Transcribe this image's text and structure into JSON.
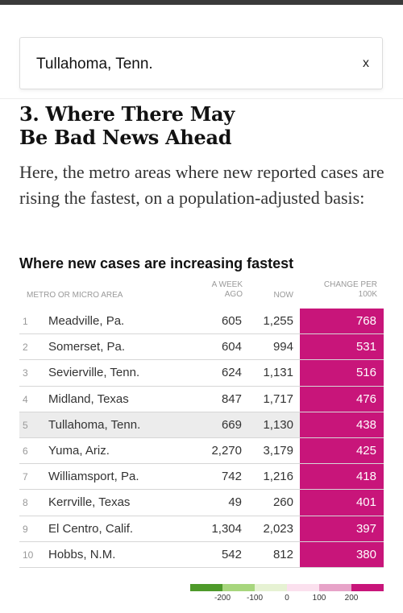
{
  "search": {
    "value": "Tullahoma, Tenn.",
    "clear_label": "x"
  },
  "section": {
    "headline_line1": "3. Where There May",
    "headline_line2": "Be Bad News Ahead",
    "intro": "Here, the metro areas where new reported cases are rising the fastest, on a population-adjusted basis:"
  },
  "table": {
    "title": "Where new cases are increasing fastest",
    "headers": {
      "metro": "METRO OR MICRO AREA",
      "ago_line1": "A WEEK",
      "ago_line2": "AGO",
      "now": "NOW",
      "change_line1": "CHANGE PER",
      "change_line2": "100K"
    },
    "rows": [
      {
        "rank": "1",
        "name": "Meadville, Pa.",
        "ago": "605",
        "now": "1,255",
        "change": "768"
      },
      {
        "rank": "2",
        "name": "Somerset, Pa.",
        "ago": "604",
        "now": "994",
        "change": "531"
      },
      {
        "rank": "3",
        "name": "Sevierville, Tenn.",
        "ago": "624",
        "now": "1,131",
        "change": "516"
      },
      {
        "rank": "4",
        "name": "Midland, Texas",
        "ago": "847",
        "now": "1,717",
        "change": "476"
      },
      {
        "rank": "5",
        "name": "Tullahoma, Tenn.",
        "ago": "669",
        "now": "1,130",
        "change": "438"
      },
      {
        "rank": "6",
        "name": "Yuma, Ariz.",
        "ago": "2,270",
        "now": "3,179",
        "change": "425"
      },
      {
        "rank": "7",
        "name": "Williamsport, Pa.",
        "ago": "742",
        "now": "1,216",
        "change": "418"
      },
      {
        "rank": "8",
        "name": "Kerrville, Texas",
        "ago": "49",
        "now": "260",
        "change": "401"
      },
      {
        "rank": "9",
        "name": "El Centro, Calif.",
        "ago": "1,304",
        "now": "2,023",
        "change": "397"
      },
      {
        "rank": "10",
        "name": "Hobbs, N.M.",
        "ago": "542",
        "now": "812",
        "change": "380"
      }
    ],
    "highlighted_rank": "5"
  },
  "legend": {
    "colors": [
      "#4e9a2a",
      "#a7d67d",
      "#e6f2d3",
      "#fbe0ee",
      "#e7a3c8",
      "#c8157a"
    ],
    "ticks": [
      "-200",
      "-100",
      "0",
      "100",
      "200"
    ]
  },
  "colors": {
    "change_cell": "#c8157a",
    "highlight_row": "#ececec"
  }
}
